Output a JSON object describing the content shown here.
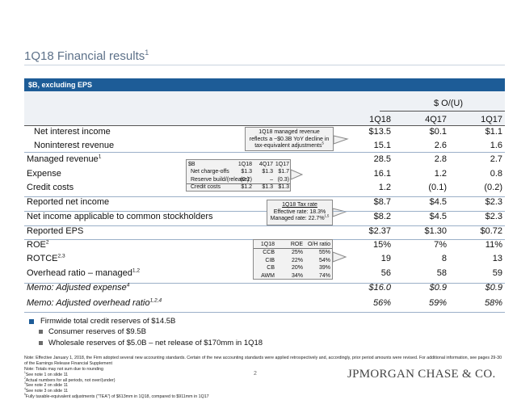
{
  "header": {
    "title": "1Q18 Financial results",
    "title_sup": "1",
    "subtitle": "$B, excluding EPS"
  },
  "table": {
    "group_header": "$ O/(U)",
    "columns": [
      "1Q18",
      "4Q17",
      "1Q17"
    ],
    "rows": [
      {
        "label": "Net interest income",
        "cells": [
          "$13.5",
          "$0.1",
          "$1.1"
        ]
      },
      {
        "label": "Noninterest revenue",
        "cells": [
          "15.1",
          "2.6",
          "1.6"
        ]
      },
      {
        "label": "Managed revenue",
        "sup": "1",
        "cells": [
          "28.5",
          "2.8",
          "2.7"
        ]
      },
      {
        "label": "Expense",
        "cells": [
          "16.1",
          "1.2",
          "0.8"
        ]
      },
      {
        "label": "Credit costs",
        "cells": [
          "1.2",
          "(0.1)",
          "(0.2)"
        ]
      },
      {
        "label": "Reported net income",
        "cells": [
          "$8.7",
          "$4.5",
          "$2.3"
        ]
      },
      {
        "label": "Net income applicable to common stockholders",
        "cells": [
          "$8.2",
          "$4.5",
          "$2.3"
        ]
      },
      {
        "label": "Reported EPS",
        "cells": [
          "$2.37",
          "$1.30",
          "$0.72"
        ]
      },
      {
        "label": "ROE",
        "sup": "2",
        "cells": [
          "15%",
          "7%",
          "11%"
        ]
      },
      {
        "label": "ROTCE",
        "sup": "2,3",
        "cells": [
          "19",
          "8",
          "13"
        ]
      },
      {
        "label": "Overhead ratio – managed",
        "sup": "1,2",
        "cells": [
          "56",
          "58",
          "59"
        ]
      },
      {
        "label": "Memo: Adjusted expense",
        "sup": "4",
        "cells": [
          "$16.0",
          "$0.9",
          "$0.9"
        ]
      },
      {
        "label": "Memo: Adjusted overhead ratio",
        "sup": "1,2,4",
        "cells": [
          "56%",
          "59%",
          "58%"
        ]
      }
    ]
  },
  "callouts": {
    "revenue": {
      "lines": [
        "1Q18 managed revenue",
        "reflects a ~$0.3B YoY decline in",
        "tax-equivalent adjustments"
      ],
      "sup": "5"
    },
    "credit": {
      "header": [
        "$B",
        "1Q18",
        "4Q17",
        "1Q17"
      ],
      "rows": [
        [
          "Net charge-offs",
          "$1.3",
          "$1.3",
          "$1.7"
        ],
        [
          "Reserve build/(release)",
          "(0.2)",
          "–",
          "(0.3)"
        ],
        [
          "Credit costs",
          "$1.2",
          "$1.3",
          "$1.3"
        ]
      ]
    },
    "tax": {
      "lines": [
        "1Q18 Tax rate",
        "Effective rate: 18.3%",
        "Managed rate: 22.7%"
      ],
      "sup": "1,5"
    },
    "segments": {
      "header": [
        "1Q18",
        "ROE",
        "O/H ratio"
      ],
      "rows": [
        [
          "CCB",
          "25%",
          "55%"
        ],
        [
          "CIB",
          "22%",
          "54%"
        ],
        [
          "CB",
          "20%",
          "39%"
        ],
        [
          "AWM",
          "34%",
          "74%"
        ]
      ]
    }
  },
  "bullets": {
    "main": "Firmwide total credit reserves of $14.5B",
    "sub": [
      "Consumer reserves of $9.5B",
      "Wholesale reserves of $5.0B – net release of $170mm in 1Q18"
    ]
  },
  "footnotes": {
    "notes": [
      "Note: Effective January 1, 2018, the Firm adopted several new accounting standards. Certain of the new accounting standards were applied retrospectively and, accordingly, prior period amounts were revised. For additional information, see pages 29-30 of the Earnings Release Financial Supplement",
      "Note: Totals may not sum due to rounding"
    ],
    "items": [
      {
        "mark": "1",
        "text": "See note 1 on slide 11"
      },
      {
        "mark": "2",
        "text": "Actual numbers for all periods, not over/(under)"
      },
      {
        "mark": "3",
        "text": "See note 2 on slide 11"
      },
      {
        "mark": "4",
        "text": "See note 3 on slide 11"
      },
      {
        "mark": "5",
        "text": "Fully taxable-equivalent adjustments (\"TEA\") of $613mm in 1Q18, compared to $911mm in 1Q17"
      }
    ]
  },
  "footer": {
    "page": "2",
    "logo": "JPMORGAN CHASE & CO."
  }
}
